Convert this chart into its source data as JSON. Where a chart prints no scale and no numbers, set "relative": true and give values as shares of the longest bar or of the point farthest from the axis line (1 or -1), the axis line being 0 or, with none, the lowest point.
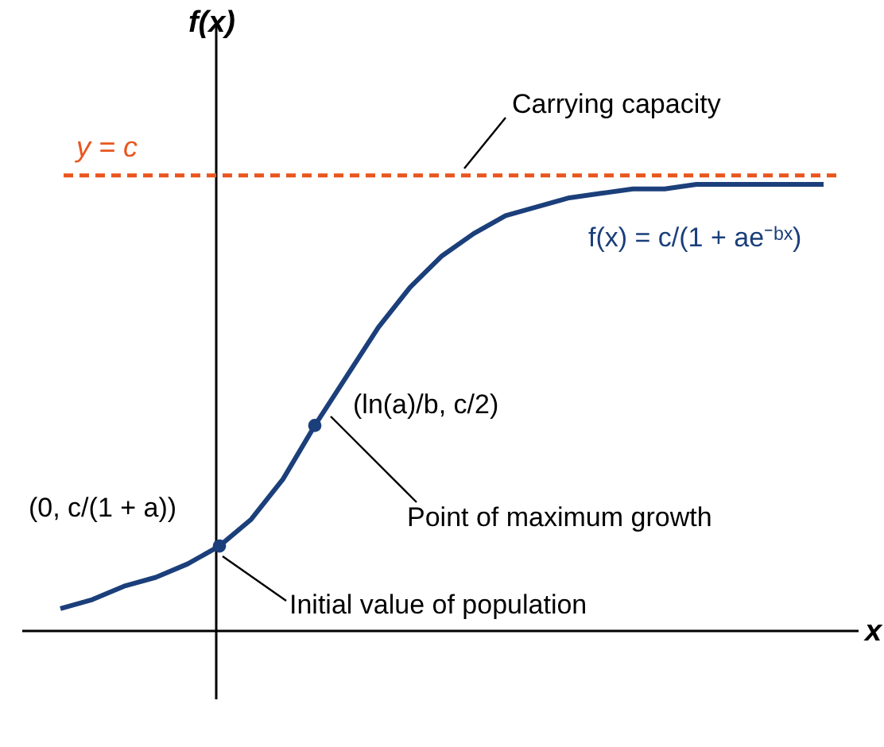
{
  "chart_data": {
    "type": "line",
    "relative": true,
    "xlabel": "x",
    "ylabel": "f(x)",
    "line_style": "solid",
    "marker": "none",
    "categories": [
      null,
      null,
      null,
      null,
      null,
      null,
      null,
      null,
      null,
      null,
      null,
      null,
      null,
      null,
      null,
      null,
      null,
      null,
      null,
      null,
      null,
      null,
      null,
      null,
      null
    ],
    "series": [
      {
        "name": "f(x) = c/(1 + ae⁻ᵇˣ)",
        "color": "#1b3f7a",
        "values": [
          0.05,
          0.07,
          0.1,
          0.12,
          0.15,
          0.19,
          0.25,
          0.34,
          0.46,
          0.57,
          0.68,
          0.77,
          0.84,
          0.89,
          0.93,
          0.95,
          0.97,
          0.98,
          0.99,
          0.99,
          1,
          1,
          1,
          1,
          1
        ]
      }
    ],
    "ref_lines": [
      {
        "axis": "y",
        "value": 1.02,
        "label": "y = c",
        "color": "#e8561e",
        "line_style": "dashed"
      }
    ],
    "annotations": [
      "Carrying capacity",
      "(ln(a)/b, c/2)",
      "Point of maximum growth",
      "(0, c/(1 + a))",
      "Initial value of population"
    ]
  }
}
